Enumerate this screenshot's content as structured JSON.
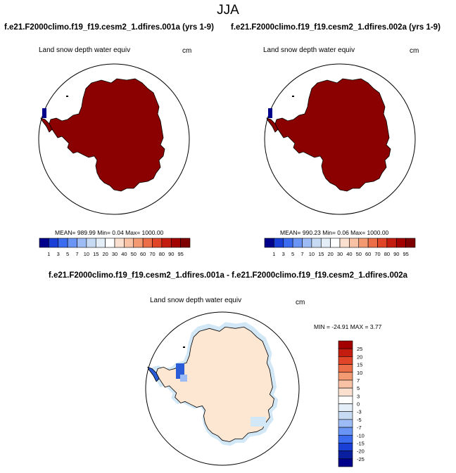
{
  "title": "JJA",
  "panels": [
    {
      "case": "f.e21.F2000climo.f19_f19.cesm2_1.dfires.001a (yrs 1-9)",
      "variable": "Land snow depth water equiv",
      "units": "cm",
      "stats": "MEAN= 989.99  Min=  0.04  Max= 1000.00"
    },
    {
      "case": "f.e21.F2000climo.f19_f19.cesm2_1.dfires.002a (yrs 1-9)",
      "variable": "Land snow depth water equiv",
      "units": "cm",
      "stats": "MEAN= 990.23  Min=  0.06  Max= 1000.00"
    }
  ],
  "diff": {
    "title": "f.e21.F2000climo.f19_f19.cesm2_1.dfires.001a - f.e21.F2000climo.f19_f19.cesm2_1.dfires.002a",
    "variable": "Land snow depth water equiv",
    "units": "cm",
    "stats": "MIN = -24.91  MAX =   3.77"
  },
  "colors": {
    "land_fill": "#8b0000",
    "diff_fill": "#fde6d2",
    "diff_negative": "#d3e8f7",
    "diff_strong_negative": "#2a5cd8"
  },
  "chart_data": [
    {
      "type": "heatmap",
      "map": "Antarctica polar stereographic",
      "levels": [
        "1",
        "3",
        "5",
        "7",
        "10",
        "15",
        "20",
        "30",
        "40",
        "50",
        "60",
        "70",
        "80",
        "90",
        "95"
      ],
      "colorbar": [
        "#00008b",
        "#1a3fd6",
        "#3b6cf0",
        "#6a95f5",
        "#9dbcf5",
        "#c6dbf3",
        "#e3eef9",
        "#ffffff",
        "#fbe0d0",
        "#f9c2a5",
        "#f49a72",
        "#ec6e48",
        "#e04528",
        "#c41d10",
        "#a30000",
        "#7e0000"
      ],
      "title": "Land snow depth water equiv",
      "units": "cm",
      "mean": 989.99,
      "min": 0.04,
      "max": 1000.0
    },
    {
      "type": "heatmap",
      "map": "Antarctica polar stereographic",
      "levels": [
        "1",
        "3",
        "5",
        "7",
        "10",
        "15",
        "20",
        "30",
        "40",
        "50",
        "60",
        "70",
        "80",
        "90",
        "95"
      ],
      "colorbar": [
        "#00008b",
        "#1a3fd6",
        "#3b6cf0",
        "#6a95f5",
        "#9dbcf5",
        "#c6dbf3",
        "#e3eef9",
        "#ffffff",
        "#fbe0d0",
        "#f9c2a5",
        "#f49a72",
        "#ec6e48",
        "#e04528",
        "#c41d10",
        "#a30000",
        "#7e0000"
      ],
      "title": "Land snow depth water equiv",
      "units": "cm",
      "mean": 990.23,
      "min": 0.06,
      "max": 1000.0
    },
    {
      "type": "heatmap",
      "map": "Antarctica polar stereographic",
      "levels": [
        "25",
        "20",
        "15",
        "10",
        "7",
        "5",
        "3",
        "0",
        "-3",
        "-5",
        "-7",
        "-10",
        "-15",
        "-20",
        "-25"
      ],
      "colorbar": [
        "#a30000",
        "#c41d10",
        "#e04528",
        "#ec6e48",
        "#f49a72",
        "#f9c2a5",
        "#fbe0d0",
        "#ffffff",
        "#e3eef9",
        "#c6dbf3",
        "#9dbcf5",
        "#6a95f5",
        "#3b6cf0",
        "#1a3fd6",
        "#0a1fa0",
        "#00008b"
      ],
      "title": "Land snow depth water equiv",
      "units": "cm",
      "min": -24.91,
      "max": 3.77
    }
  ]
}
